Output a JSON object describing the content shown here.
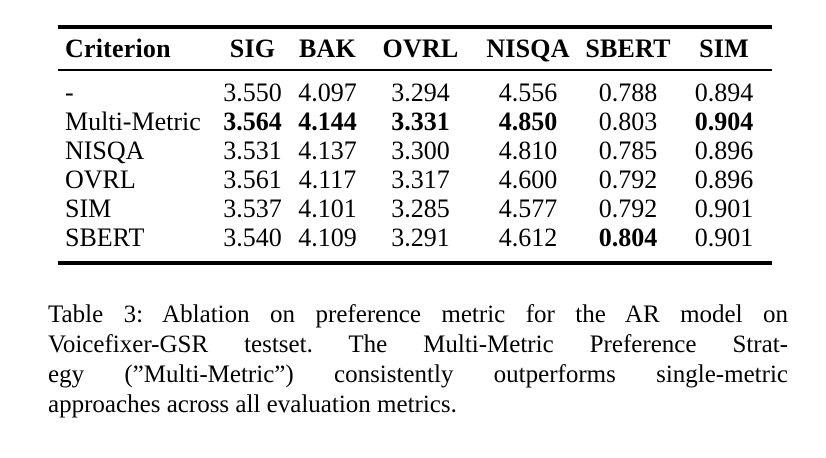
{
  "page": {
    "background": "#ffffff",
    "text_color": "#000000",
    "rule_color": "#000000"
  },
  "table": {
    "columns": [
      "Criterion",
      "SIG",
      "BAK",
      "OVRL",
      "NISQA",
      "SBERT",
      "SIM"
    ],
    "rows": [
      {
        "criterion": "-",
        "cells": [
          {
            "v": "3.550",
            "b": false
          },
          {
            "v": "4.097",
            "b": false
          },
          {
            "v": "3.294",
            "b": false
          },
          {
            "v": "4.556",
            "b": false
          },
          {
            "v": "0.788",
            "b": false
          },
          {
            "v": "0.894",
            "b": false
          }
        ]
      },
      {
        "criterion": "Multi-Metric",
        "cells": [
          {
            "v": "3.564",
            "b": true
          },
          {
            "v": "4.144",
            "b": true
          },
          {
            "v": "3.331",
            "b": true
          },
          {
            "v": "4.850",
            "b": true
          },
          {
            "v": "0.803",
            "b": false
          },
          {
            "v": "0.904",
            "b": true
          }
        ]
      },
      {
        "criterion": "NISQA",
        "cells": [
          {
            "v": "3.531",
            "b": false
          },
          {
            "v": "4.137",
            "b": false
          },
          {
            "v": "3.300",
            "b": false
          },
          {
            "v": "4.810",
            "b": false
          },
          {
            "v": "0.785",
            "b": false
          },
          {
            "v": "0.896",
            "b": false
          }
        ]
      },
      {
        "criterion": "OVRL",
        "cells": [
          {
            "v": "3.561",
            "b": false
          },
          {
            "v": "4.117",
            "b": false
          },
          {
            "v": "3.317",
            "b": false
          },
          {
            "v": "4.600",
            "b": false
          },
          {
            "v": "0.792",
            "b": false
          },
          {
            "v": "0.896",
            "b": false
          }
        ]
      },
      {
        "criterion": "SIM",
        "cells": [
          {
            "v": "3.537",
            "b": false
          },
          {
            "v": "4.101",
            "b": false
          },
          {
            "v": "3.285",
            "b": false
          },
          {
            "v": "4.577",
            "b": false
          },
          {
            "v": "0.792",
            "b": false
          },
          {
            "v": "0.901",
            "b": false
          }
        ]
      },
      {
        "criterion": "SBERT",
        "cells": [
          {
            "v": "3.540",
            "b": false
          },
          {
            "v": "4.109",
            "b": false
          },
          {
            "v": "3.291",
            "b": false
          },
          {
            "v": "4.612",
            "b": false
          },
          {
            "v": "0.804",
            "b": true
          },
          {
            "v": "0.901",
            "b": false
          }
        ]
      }
    ]
  },
  "caption": {
    "lines": [
      "Table 3: Ablation on preference metric for the AR model on",
      "Voicefixer-GSR testset. The Multi-Metric Preference Strat-",
      "egy (”Multi-Metric”) consistently outperforms single-metric",
      "approaches across all evaluation metrics."
    ]
  }
}
